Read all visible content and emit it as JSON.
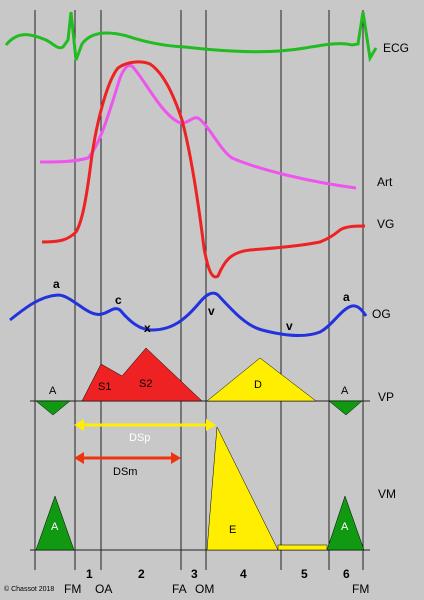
{
  "colors": {
    "background": "#c8c8c8",
    "ecg": "#22bb22",
    "art": "#ee55ee",
    "vg": "#ee2222",
    "og": "#2233dd",
    "systole_fill": "#ee2222",
    "diastole_fill": "#ffee00",
    "atrial_fill": "#119911",
    "dsp_arrow": "#ffee00",
    "dsm_arrow": "#ee3311"
  },
  "curve_labels": {
    "ecg": "ECG",
    "art": "Art",
    "vg": "VG",
    "og": "OG"
  },
  "og_waves": {
    "a1": "a",
    "c": "c",
    "x": "x",
    "v1": "v",
    "v2": "v",
    "a2": "a"
  },
  "vp": {
    "label": "VP",
    "atrial_left": "A",
    "s1": "S1",
    "s2": "S2",
    "d": "D",
    "atrial_right": "A"
  },
  "durations": {
    "dsp": "DSp",
    "dsm": "DSm"
  },
  "vm": {
    "label": "VM",
    "atrial_left": "A",
    "e": "E",
    "atrial_right": "A"
  },
  "phases": [
    "1",
    "2",
    "3",
    "4",
    "5",
    "6"
  ],
  "events": {
    "fm_left": "FM",
    "oa": "OA",
    "fa": "FA",
    "om": "OM",
    "fm_right": "FM"
  },
  "copyright": "© Chassot 2018"
}
